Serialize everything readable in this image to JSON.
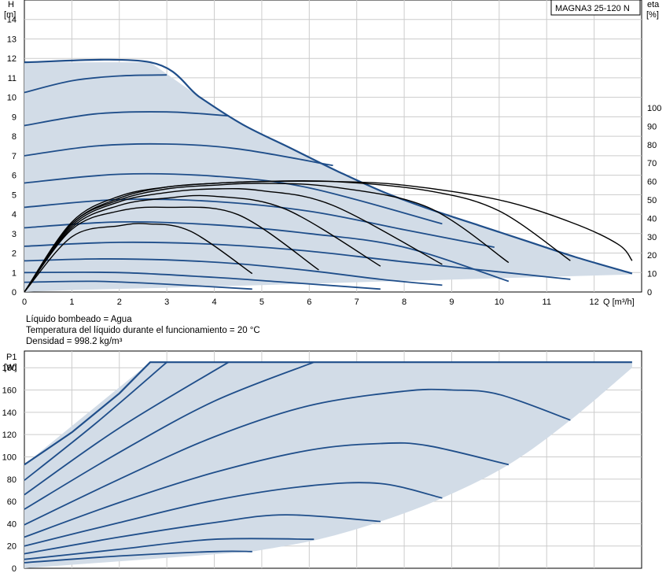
{
  "colors": {
    "curve": "#1f4e8a",
    "envelope_fill": "#d2dce7",
    "eta_curve": "#000000",
    "grid": "#cccccc",
    "frame": "#000000"
  },
  "info": {
    "line1": "Líquido bombeado = Agua",
    "line2": "Temperatura del líquido durante el funcionamiento = 20 °C",
    "line3": "Densidad = 998.2 kg/m³"
  },
  "chart_data": [
    {
      "type": "line",
      "title": "",
      "model_label": "MAGNA3 25-120 N",
      "ylabel": "H",
      "yunit": "[m]",
      "y2label": "eta",
      "y2unit": "[%]",
      "xlabel": "Q [m³/h]",
      "xlim": [
        0,
        13
      ],
      "ylim": [
        0,
        15
      ],
      "y2lim": [
        0,
        100
      ],
      "xticks": [
        "0",
        "1",
        "2",
        "3",
        "4",
        "5",
        "6",
        "7",
        "8",
        "9",
        "10",
        "11",
        "12"
      ],
      "yticks": [
        "0",
        "1",
        "2",
        "3",
        "4",
        "5",
        "6",
        "7",
        "8",
        "9",
        "10",
        "11",
        "12",
        "13",
        "14"
      ],
      "y2ticks": [
        "0",
        "10",
        "20",
        "30",
        "40",
        "50",
        "60",
        "70",
        "80",
        "90",
        "100"
      ],
      "grid": true,
      "envelope": {
        "x": [
          0,
          0,
          2.65,
          3.7,
          4.6,
          5.6,
          6.6,
          7.6,
          8.6,
          9.6,
          10.6,
          11.6,
          12.8,
          12.8,
          7.0,
          5.0,
          3.0,
          1.0,
          0
        ],
        "y": [
          0,
          11.8,
          11.8,
          10.0,
          8.6,
          7.4,
          6.2,
          5.1,
          4.2,
          3.4,
          2.6,
          1.8,
          0.95,
          0.9,
          0.5,
          0.35,
          0.22,
          0.1,
          0
        ]
      },
      "series": [
        {
          "x": [
            0,
            1,
            2,
            3
          ],
          "y": [
            10.25,
            10.85,
            11.1,
            11.15
          ]
        },
        {
          "x": [
            0,
            1.5,
            3,
            4.3
          ],
          "y": [
            8.55,
            9.15,
            9.25,
            9.05
          ]
        },
        {
          "x": [
            0,
            1.5,
            3,
            4.5,
            6.5
          ],
          "y": [
            7.0,
            7.5,
            7.6,
            7.35,
            6.5
          ]
        },
        {
          "x": [
            0,
            2,
            4,
            6,
            8.8
          ],
          "y": [
            5.6,
            6.05,
            5.95,
            5.35,
            3.5
          ]
        },
        {
          "x": [
            0,
            2,
            4,
            6,
            8,
            9.9
          ],
          "y": [
            4.35,
            4.75,
            4.65,
            4.15,
            3.2,
            2.3
          ]
        },
        {
          "x": [
            0,
            2,
            4,
            6,
            8,
            10.2
          ],
          "y": [
            3.3,
            3.6,
            3.45,
            3.0,
            2.3,
            0.55
          ]
        },
        {
          "x": [
            0,
            2,
            4,
            6,
            8,
            11.5
          ],
          "y": [
            2.35,
            2.55,
            2.45,
            2.1,
            1.55,
            0.65
          ]
        },
        {
          "x": [
            0,
            1.5,
            3,
            4.5,
            6,
            7.5,
            8.8
          ],
          "y": [
            1.6,
            1.7,
            1.65,
            1.45,
            1.1,
            0.65,
            0.35
          ]
        },
        {
          "x": [
            0,
            2,
            4,
            5.5,
            7.5
          ],
          "y": [
            1.0,
            1.0,
            0.75,
            0.5,
            0.15
          ]
        },
        {
          "x": [
            0,
            1.5,
            3,
            4.8
          ],
          "y": [
            0.5,
            0.55,
            0.4,
            0.15
          ]
        }
      ],
      "eta_series": [
        {
          "x": [
            0,
            1,
            2,
            2.6,
            3.5,
            4.8
          ],
          "y": [
            0,
            30,
            36,
            37,
            33,
            10
          ]
        },
        {
          "x": [
            0,
            1,
            2,
            3,
            4.5,
            6.2
          ],
          "y": [
            0,
            34,
            44,
            46,
            42,
            12
          ]
        },
        {
          "x": [
            0,
            1,
            2,
            3,
            4,
            5.5,
            7.5
          ],
          "y": [
            0,
            35,
            47,
            51,
            52,
            45,
            14
          ]
        },
        {
          "x": [
            0,
            1,
            2,
            3,
            4,
            5,
            6.5,
            8.8
          ],
          "y": [
            0,
            36,
            49,
            54,
            56,
            55,
            47,
            15
          ]
        },
        {
          "x": [
            0,
            1,
            2,
            3,
            4,
            5,
            6.5,
            8.5,
            10.2
          ],
          "y": [
            0,
            37,
            50,
            56,
            58,
            59,
            57,
            46,
            16
          ]
        },
        {
          "x": [
            0,
            1,
            2,
            3,
            4,
            5,
            6.5,
            8.5,
            10,
            11.5
          ],
          "y": [
            0,
            37,
            51,
            57,
            59,
            60,
            60,
            55,
            44,
            17
          ]
        },
        {
          "x": [
            0,
            1,
            2,
            3,
            4,
            5,
            6.5,
            8,
            10,
            11.5,
            12.5,
            12.8
          ],
          "y": [
            0,
            38,
            52,
            57,
            59,
            60,
            60,
            58,
            50,
            38,
            26,
            17
          ]
        }
      ]
    },
    {
      "type": "line",
      "title": "",
      "ylabel": "P1",
      "yunit": "[W]",
      "xlim": [
        0,
        13
      ],
      "ylim": [
        0,
        195
      ],
      "yticks": [
        "0",
        "20",
        "40",
        "60",
        "80",
        "100",
        "120",
        "140",
        "160",
        "180"
      ],
      "grid": true,
      "envelope": {
        "x": [
          0,
          0,
          2.65,
          12.8,
          12.8,
          11.5,
          10.2,
          8.8,
          7.5,
          6.2,
          4.8,
          0
        ],
        "y": [
          0,
          93,
          185,
          185,
          180,
          133,
          93,
          63,
          42,
          26,
          15,
          0
        ]
      },
      "series": [
        {
          "x": [
            0,
            1,
            2,
            2.65,
            12.8
          ],
          "y": [
            93,
            122,
            157,
            185,
            185
          ]
        },
        {
          "x": [
            0,
            1.5,
            3
          ],
          "y": [
            79,
            130,
            185
          ]
        },
        {
          "x": [
            0,
            2,
            4.3
          ],
          "y": [
            66,
            126,
            185
          ]
        },
        {
          "x": [
            0,
            2,
            4,
            6.1
          ],
          "y": [
            53,
            104,
            150,
            185
          ]
        },
        {
          "x": [
            0,
            2,
            4,
            6,
            8,
            9,
            10,
            11.5
          ],
          "y": [
            39,
            80,
            118,
            146,
            159,
            160,
            156,
            133
          ]
        },
        {
          "x": [
            0,
            2,
            4,
            6,
            7.5,
            8.5,
            10.2
          ],
          "y": [
            28,
            59,
            86,
            106,
            112,
            110,
            93
          ]
        },
        {
          "x": [
            0,
            2,
            4,
            6,
            7.5,
            8.8
          ],
          "y": [
            20,
            41,
            61,
            74,
            76,
            63
          ]
        },
        {
          "x": [
            0,
            2,
            4,
            5.5,
            7.5
          ],
          "y": [
            13,
            28,
            41,
            48,
            42
          ]
        },
        {
          "x": [
            0,
            2,
            4,
            6.1
          ],
          "y": [
            8,
            17,
            26,
            26
          ]
        },
        {
          "x": [
            0,
            2,
            4,
            4.8
          ],
          "y": [
            5,
            11,
            15,
            15
          ]
        }
      ]
    }
  ]
}
